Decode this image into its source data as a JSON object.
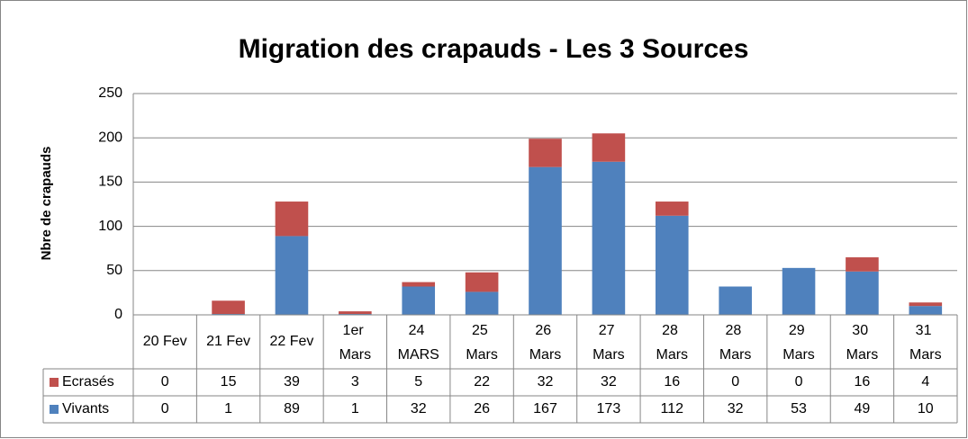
{
  "chart_data": {
    "type": "bar",
    "stacked": true,
    "title": "Migration des crapauds - Les 3 Sources",
    "y_label": "Nbre de crapauds",
    "categories": [
      "20 Fev",
      "21 Fev",
      "22 Fev",
      "1er Mars",
      "24 MARS",
      "25 Mars",
      "26 Mars",
      "27 Mars",
      "28 Mars",
      "28 Mars",
      "29 Mars",
      "30 Mars",
      "31 Mars"
    ],
    "series": [
      {
        "name": "Vivants",
        "color": "#4f81bd",
        "values": [
          0,
          1,
          89,
          1,
          32,
          26,
          167,
          173,
          112,
          32,
          53,
          49,
          10
        ]
      },
      {
        "name": "Ecrasés",
        "color": "#c0504d",
        "values": [
          0,
          15,
          39,
          3,
          5,
          22,
          32,
          32,
          16,
          0,
          0,
          16,
          4
        ]
      }
    ],
    "ylim": [
      0,
      250
    ],
    "yticks": [
      0,
      50,
      100,
      150,
      200,
      250
    ],
    "grid": true
  }
}
